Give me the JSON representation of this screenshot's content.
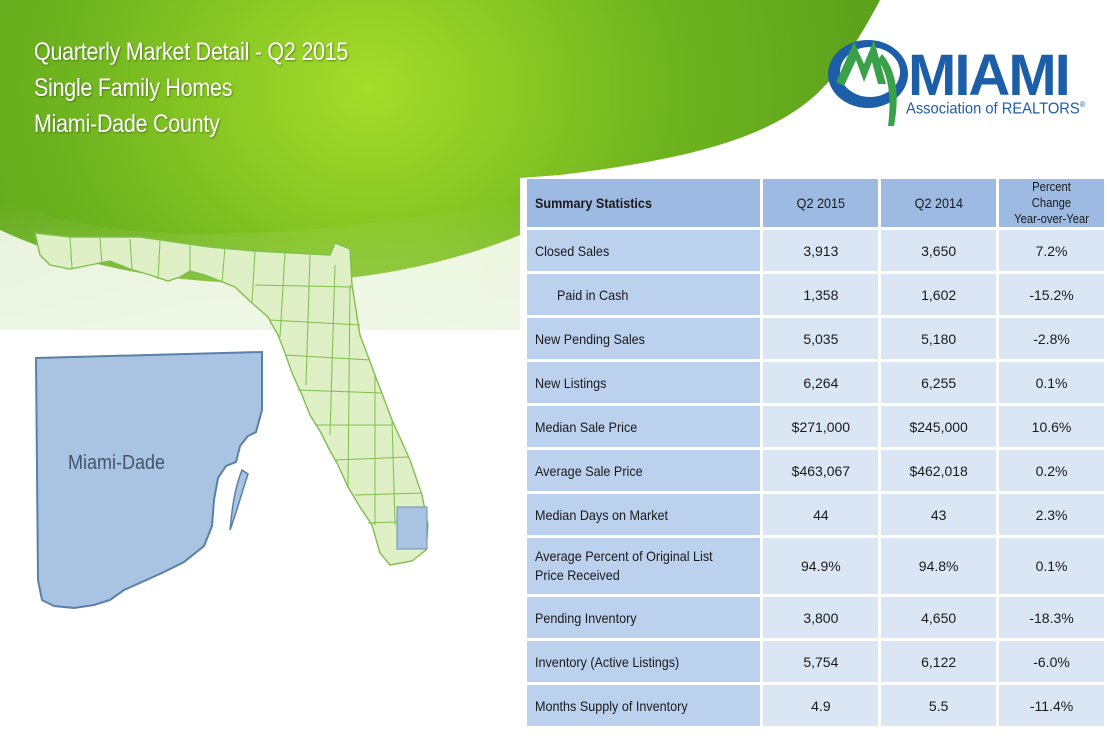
{
  "header": {
    "title_line1": "Quarterly Market Detail - Q2 2015",
    "title_line2": "Single Family Homes",
    "title_line3": "Miami-Dade County"
  },
  "logo": {
    "wordmark": "MIAMI",
    "subtitle": "Association of REALTORS",
    "mark": "®",
    "colors": {
      "blue": "#1c5fa8",
      "green": "#3aa04a"
    }
  },
  "map": {
    "region_label": "Miami-Dade",
    "colors": {
      "state_fill": "#dff0c6",
      "county_border": "#7fbf4d",
      "highlight": "#a8c4e2"
    }
  },
  "table": {
    "headers": {
      "metric": "Summary Statistics",
      "current": "Q2 2015",
      "prior": "Q2 2014",
      "change_line1": "Percent Change",
      "change_line2": "Year-over-Year"
    },
    "rows": [
      {
        "label": "Closed Sales",
        "current": "3,913",
        "prior": "3,650",
        "change": "7.2%"
      },
      {
        "label": "Paid in Cash",
        "current": "1,358",
        "prior": "1,602",
        "change": "-15.2%"
      },
      {
        "label": "New Pending Sales",
        "current": "5,035",
        "prior": "5,180",
        "change": "-2.8%"
      },
      {
        "label": "New Listings",
        "current": "6,264",
        "prior": "6,255",
        "change": "0.1%"
      },
      {
        "label": "Median Sale Price",
        "current": "$271,000",
        "prior": "$245,000",
        "change": "10.6%"
      },
      {
        "label": "Average Sale Price",
        "current": "$463,067",
        "prior": "$462,018",
        "change": "0.2%"
      },
      {
        "label": "Median Days on Market",
        "current": "44",
        "prior": "43",
        "change": "2.3%"
      },
      {
        "label": "Average Percent of Original List Price Received",
        "current": "94.9%",
        "prior": "94.8%",
        "change": "0.1%"
      },
      {
        "label": "Pending Inventory",
        "current": "3,800",
        "prior": "4,650",
        "change": "-18.3%"
      },
      {
        "label": "Inventory (Active Listings)",
        "current": "5,754",
        "prior": "6,122",
        "change": "-6.0%"
      },
      {
        "label": "Months Supply of Inventory",
        "current": "4.9",
        "prior": "5.5",
        "change": "-11.4%"
      }
    ]
  }
}
